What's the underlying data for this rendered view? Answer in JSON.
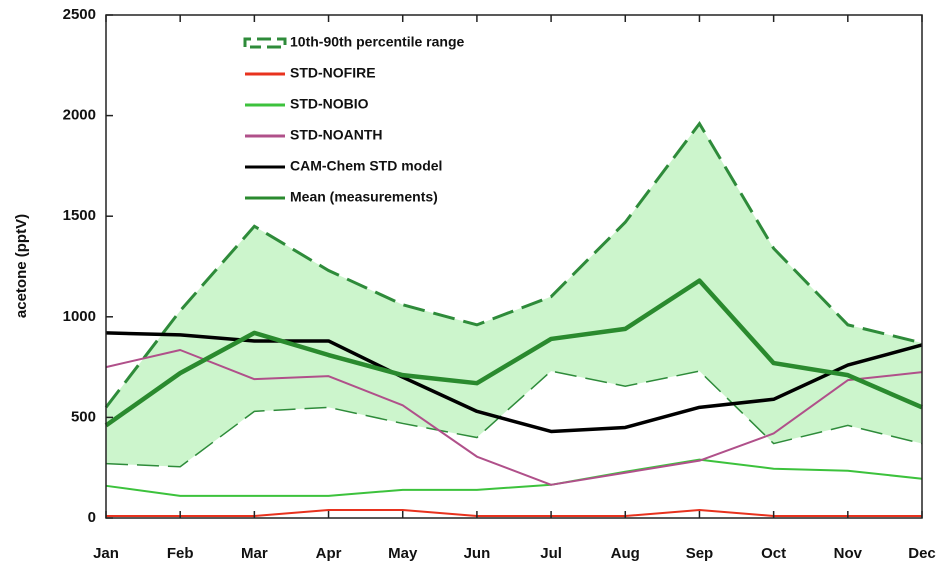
{
  "chart_data": {
    "type": "line",
    "y_label": "acetone (pptV)",
    "categories": [
      "Jan",
      "Feb",
      "Mar",
      "Apr",
      "May",
      "Jun",
      "Jul",
      "Aug",
      "Sep",
      "Oct",
      "Nov",
      "Dec"
    ],
    "ylim": [
      0,
      2500
    ],
    "yticks": [
      0,
      500,
      1000,
      1500,
      2000,
      2500
    ],
    "band": {
      "name": "10th-90th percentile range",
      "color": "#2e8b3a",
      "fill": "#ccf5cc",
      "high": [
        550,
        1030,
        1450,
        1230,
        1060,
        960,
        1100,
        1470,
        1960,
        1340,
        960,
        870
      ],
      "low": [
        270,
        255,
        530,
        550,
        470,
        400,
        730,
        655,
        730,
        370,
        460,
        370
      ]
    },
    "series": [
      {
        "name": "STD-NOFIRE",
        "color": "#e8321e",
        "values": [
          10,
          10,
          10,
          40,
          40,
          10,
          10,
          10,
          40,
          10,
          10,
          10
        ]
      },
      {
        "name": "STD-NOBIO",
        "color": "#3cc23c",
        "values": [
          160,
          110,
          110,
          110,
          140,
          140,
          165,
          230,
          290,
          245,
          235,
          195
        ]
      },
      {
        "name": "STD-NOANTH",
        "color": "#b0508a",
        "values": [
          750,
          835,
          690,
          705,
          560,
          305,
          165,
          225,
          285,
          420,
          685,
          725
        ]
      },
      {
        "name": "CAM-Chem STD model",
        "color": "#000000",
        "values": [
          920,
          910,
          880,
          880,
          700,
          530,
          430,
          450,
          550,
          590,
          760,
          860
        ]
      },
      {
        "name": "Mean (measurements)",
        "color": "#2a8a2e",
        "values": [
          460,
          720,
          920,
          810,
          710,
          670,
          890,
          940,
          1180,
          770,
          710,
          550
        ]
      }
    ]
  }
}
